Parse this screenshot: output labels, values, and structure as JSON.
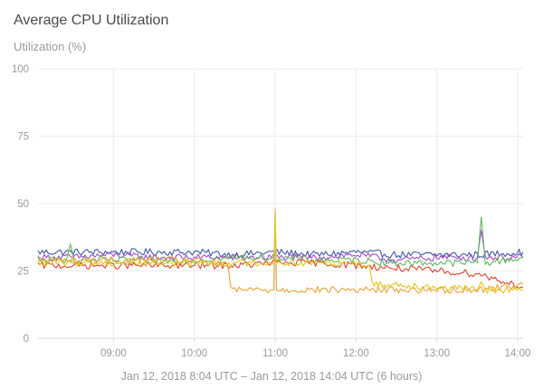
{
  "chart_data": {
    "type": "line",
    "title": "Average CPU Utilization",
    "ylabel": "Utilization (%)",
    "xlabel": "Jan 12, 2018 8:04 UTC – Jan 12, 2018 14:04 UTC (6 hours)",
    "ylim": [
      0,
      100
    ],
    "xlim": [
      "08:04",
      "14:04"
    ],
    "yticks": [
      "0",
      "25",
      "50",
      "75",
      "100"
    ],
    "xticks": [
      {
        "t": "09:00",
        "label": "09:00"
      },
      {
        "t": "10:00",
        "label": "10:00"
      },
      {
        "t": "11:00",
        "label": "11:00"
      },
      {
        "t": "12:00",
        "label": "12:00"
      },
      {
        "t": "13:00",
        "label": "13:00"
      },
      {
        "t": "14:00",
        "label": "14:00"
      }
    ],
    "grid": true,
    "legend": "none",
    "series": [
      {
        "color": "#3d5aa8",
        "points": [
          [
            "08:04",
            32
          ],
          [
            "08:30",
            32
          ],
          [
            "09:00",
            32
          ],
          [
            "09:30",
            32
          ],
          [
            "10:00",
            32
          ],
          [
            "10:30",
            31
          ],
          [
            "11:00",
            32
          ],
          [
            "11:30",
            31
          ],
          [
            "12:00",
            32
          ],
          [
            "12:30",
            31
          ],
          [
            "13:00",
            31
          ],
          [
            "13:30",
            31
          ],
          [
            "14:04",
            32
          ]
        ]
      },
      {
        "color": "#a64ac9",
        "points": [
          [
            "08:04",
            30
          ],
          [
            "08:30",
            30
          ],
          [
            "09:00",
            31
          ],
          [
            "09:30",
            30
          ],
          [
            "10:00",
            30
          ],
          [
            "10:30",
            30
          ],
          [
            "11:00",
            30
          ],
          [
            "11:30",
            30
          ],
          [
            "12:00",
            31
          ],
          [
            "12:30",
            29
          ],
          [
            "13:00",
            30
          ],
          [
            "13:30",
            30
          ],
          [
            "13:33",
            40
          ],
          [
            "13:36",
            30
          ],
          [
            "14:04",
            30
          ]
        ]
      },
      {
        "color": "#5fb85f",
        "points": [
          [
            "08:04",
            29
          ],
          [
            "08:25",
            29
          ],
          [
            "08:28",
            35
          ],
          [
            "08:31",
            29
          ],
          [
            "09:00",
            29
          ],
          [
            "09:30",
            29
          ],
          [
            "10:00",
            29
          ],
          [
            "10:30",
            30
          ],
          [
            "11:00",
            30
          ],
          [
            "11:30",
            29
          ],
          [
            "12:00",
            29
          ],
          [
            "12:30",
            28
          ],
          [
            "13:00",
            28
          ],
          [
            "13:30",
            28
          ],
          [
            "13:33",
            45
          ],
          [
            "13:36",
            28
          ],
          [
            "14:04",
            30
          ]
        ]
      },
      {
        "color": "#d9452f",
        "points": [
          [
            "08:04",
            27
          ],
          [
            "08:30",
            27
          ],
          [
            "09:00",
            27
          ],
          [
            "09:30",
            27
          ],
          [
            "10:00",
            27
          ],
          [
            "10:30",
            27
          ],
          [
            "11:00",
            28
          ],
          [
            "11:30",
            28
          ],
          [
            "12:00",
            27
          ],
          [
            "12:30",
            26
          ],
          [
            "13:00",
            25
          ],
          [
            "13:30",
            24
          ],
          [
            "14:04",
            19
          ]
        ]
      },
      {
        "color": "#e8a23a",
        "points": [
          [
            "08:04",
            29
          ],
          [
            "08:30",
            29
          ],
          [
            "09:00",
            29
          ],
          [
            "09:30",
            29
          ],
          [
            "10:00",
            29
          ],
          [
            "10:25",
            27
          ],
          [
            "10:27",
            19
          ],
          [
            "10:30",
            18
          ],
          [
            "10:59",
            18
          ],
          [
            "11:00",
            48
          ],
          [
            "11:01",
            18
          ],
          [
            "11:30",
            18
          ],
          [
            "12:00",
            18
          ],
          [
            "12:30",
            18
          ],
          [
            "13:00",
            18
          ],
          [
            "13:30",
            18
          ],
          [
            "14:04",
            20
          ]
        ]
      },
      {
        "color": "#e3c51c",
        "points": [
          [
            "08:04",
            28
          ],
          [
            "08:30",
            28
          ],
          [
            "09:00",
            28
          ],
          [
            "09:30",
            28
          ],
          [
            "10:00",
            28
          ],
          [
            "10:30",
            28
          ],
          [
            "10:59",
            28
          ],
          [
            "11:00",
            45
          ],
          [
            "11:01",
            28
          ],
          [
            "11:30",
            28
          ],
          [
            "12:00",
            28
          ],
          [
            "12:10",
            27
          ],
          [
            "12:12",
            20
          ],
          [
            "12:30",
            20
          ],
          [
            "13:00",
            19
          ],
          [
            "13:30",
            18
          ],
          [
            "13:33",
            21
          ],
          [
            "13:36",
            18
          ],
          [
            "14:04",
            18
          ]
        ]
      }
    ]
  }
}
